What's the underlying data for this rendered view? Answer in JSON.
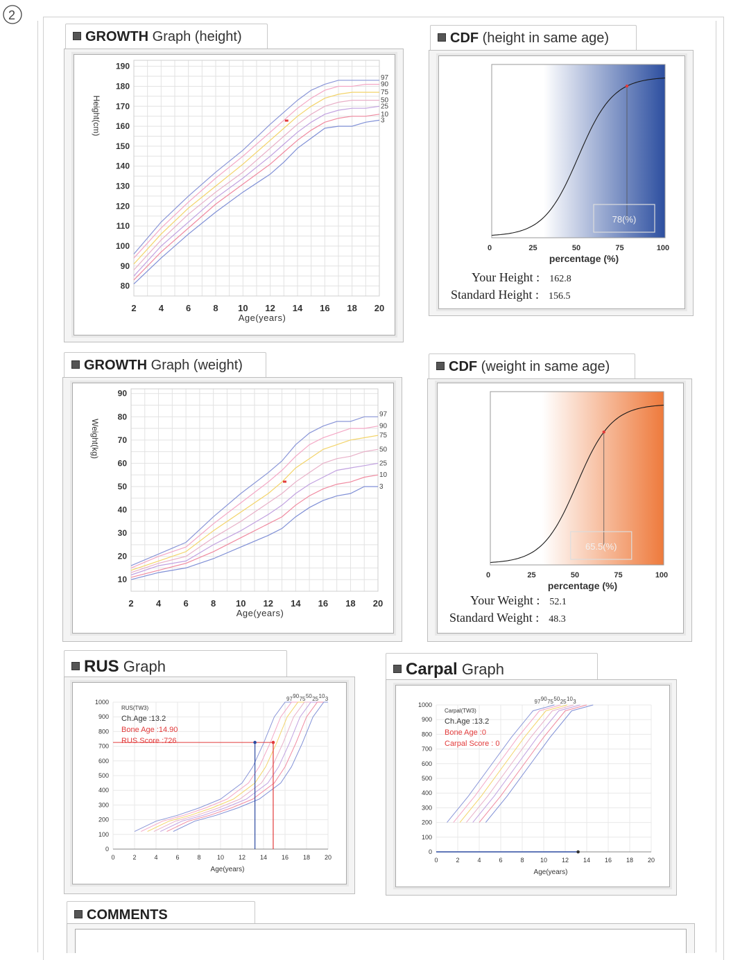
{
  "page": {
    "corner_mark": "2"
  },
  "sections": {
    "growth_height": {
      "title_bold": "GROWTH",
      "title_rest": "Graph (height)"
    },
    "cdf_height": {
      "title_bold": "CDF",
      "title_rest": "(height in same age)"
    },
    "growth_weight": {
      "title_bold": "GROWTH",
      "title_rest": "Graph (weight)"
    },
    "cdf_weight": {
      "title_bold": "CDF",
      "title_rest": "(weight in same age)"
    },
    "rus": {
      "title_bold": "RUS",
      "title_rest": "Graph"
    },
    "carpal": {
      "title_bold": "Carpal",
      "title_rest": "Graph"
    },
    "comments": {
      "title_bold": "COMMENTS"
    }
  },
  "cdf_height_stats": {
    "label1": "Your Height :",
    "value1": "162.8",
    "label2": "Standard Height :",
    "value2": "156.5"
  },
  "cdf_weight_stats": {
    "label1": "Your Weight :",
    "value1": "52.1",
    "label2": "Standard Weight :",
    "value2": "48.3"
  },
  "chart_data": [
    {
      "id": "growth_height",
      "type": "line",
      "ylabel": "Height(cm)",
      "xlabel": "Age(years)",
      "x_ticks": [
        2,
        4,
        6,
        8,
        10,
        12,
        14,
        16,
        18,
        20
      ],
      "y_ticks": [
        80,
        90,
        100,
        110,
        120,
        130,
        140,
        150,
        160,
        170,
        180,
        190
      ],
      "xlim": [
        2,
        20
      ],
      "ylim": [
        75,
        193
      ],
      "grid": true,
      "x": [
        2,
        4,
        6,
        8,
        10,
        12,
        13,
        14,
        15,
        16,
        17,
        18,
        19,
        20
      ],
      "series": [
        {
          "name": "97",
          "values": [
            96,
            112,
            125,
            137,
            148,
            161,
            167,
            173,
            178,
            181,
            183,
            183,
            183,
            183
          ]
        },
        {
          "name": "90",
          "values": [
            94,
            109,
            122,
            134,
            145,
            157,
            163,
            169,
            174,
            178,
            180,
            180,
            181,
            181
          ]
        },
        {
          "name": "75",
          "values": [
            91,
            106,
            119,
            130,
            141,
            153,
            159,
            165,
            170,
            174,
            176,
            177,
            177,
            177
          ]
        },
        {
          "name": "50",
          "values": [
            88,
            103,
            116,
            127,
            137,
            149,
            155,
            161,
            166,
            170,
            172,
            173,
            173,
            173
          ]
        },
        {
          "name": "25",
          "values": [
            85,
            100,
            112,
            124,
            134,
            145,
            151,
            157,
            162,
            166,
            168,
            169,
            169,
            170
          ]
        },
        {
          "name": "10",
          "values": [
            83,
            97,
            109,
            121,
            131,
            141,
            147,
            153,
            158,
            162,
            164,
            165,
            165,
            166
          ]
        },
        {
          "name": "3",
          "values": [
            81,
            94,
            106,
            117,
            127,
            136,
            142,
            149,
            154,
            159,
            160,
            160,
            162,
            163
          ]
        }
      ],
      "point": {
        "x": 13.2,
        "y": 162.8
      }
    },
    {
      "id": "cdf_height",
      "type": "line",
      "xlabel": "percentage (%)",
      "x_ticks": [
        0,
        25,
        50,
        75,
        100
      ],
      "xlim": [
        0,
        100
      ],
      "marker": {
        "x": 78,
        "label": "78(%)"
      },
      "gradient": [
        "#ffffff",
        "#2d4fa0"
      ]
    },
    {
      "id": "growth_weight",
      "type": "line",
      "ylabel": "Weight(kg)",
      "xlabel": "Age(years)",
      "x_ticks": [
        2,
        4,
        6,
        8,
        10,
        12,
        14,
        16,
        18,
        20
      ],
      "y_ticks": [
        10,
        20,
        30,
        40,
        50,
        60,
        70,
        80,
        90
      ],
      "xlim": [
        2,
        20
      ],
      "ylim": [
        5,
        92
      ],
      "grid": true,
      "x": [
        2,
        4,
        6,
        8,
        10,
        12,
        13,
        14,
        15,
        16,
        17,
        18,
        19,
        20
      ],
      "series": [
        {
          "name": "97",
          "values": [
            16,
            21,
            26,
            37,
            47,
            56,
            61,
            68,
            73,
            76,
            78,
            78,
            80,
            80
          ]
        },
        {
          "name": "90",
          "values": [
            15,
            20,
            24,
            34,
            43,
            52,
            57,
            63,
            68,
            71,
            73,
            75,
            75,
            76
          ]
        },
        {
          "name": "75",
          "values": [
            14,
            18,
            22,
            31,
            39,
            47,
            52,
            58,
            62,
            66,
            68,
            70,
            71,
            72
          ]
        },
        {
          "name": "50",
          "values": [
            13,
            17,
            20,
            28,
            35,
            43,
            47,
            52,
            56,
            60,
            62,
            63,
            65,
            66
          ]
        },
        {
          "name": "25",
          "values": [
            12,
            16,
            18,
            25,
            31,
            38,
            42,
            47,
            51,
            54,
            57,
            58,
            59,
            60
          ]
        },
        {
          "name": "10",
          "values": [
            11,
            14,
            17,
            22,
            28,
            34,
            37,
            42,
            46,
            49,
            51,
            52,
            54,
            55
          ]
        },
        {
          "name": "3",
          "values": [
            10,
            13,
            15,
            19,
            24,
            29,
            32,
            37,
            41,
            44,
            46,
            47,
            50,
            50
          ]
        }
      ],
      "point": {
        "x": 13.2,
        "y": 52.1
      }
    },
    {
      "id": "cdf_weight",
      "type": "line",
      "xlabel": "percentage (%)",
      "x_ticks": [
        0,
        25,
        50,
        75,
        100
      ],
      "xlim": [
        0,
        100
      ],
      "marker": {
        "x": 65.5,
        "label": "65.5(%)"
      },
      "gradient": [
        "#ffffff",
        "#ee7a3c"
      ]
    },
    {
      "id": "rus",
      "type": "line",
      "xlabel": "Age(years)",
      "x_ticks": [
        0,
        2,
        4,
        6,
        8,
        10,
        12,
        14,
        16,
        18,
        20
      ],
      "y_ticks": [
        0,
        100,
        200,
        300,
        400,
        500,
        600,
        700,
        800,
        900,
        1000
      ],
      "xlim": [
        0,
        20
      ],
      "ylim": [
        0,
        1000
      ],
      "annotations": {
        "name": "RUS(TW3)",
        "ch_age": "Ch.Age :13.2",
        "bone_age": "Bone Age :14.90",
        "score": "RUS Score :726"
      },
      "percentile_labels": [
        "97",
        "90",
        "75",
        "50",
        "25",
        "10",
        "3"
      ],
      "series_x": [
        2,
        4,
        6,
        8,
        10,
        12,
        13,
        14,
        15,
        16,
        17
      ],
      "series_base": [
        120,
        190,
        230,
        280,
        340,
        450,
        560,
        720,
        900,
        1000,
        1000
      ],
      "chrono_age": 13.2,
      "bone_age": 14.9,
      "score": 726
    },
    {
      "id": "carpal",
      "type": "line",
      "xlabel": "Age(years)",
      "x_ticks": [
        0,
        2,
        4,
        6,
        8,
        10,
        12,
        14,
        16,
        18,
        20
      ],
      "y_ticks": [
        0,
        100,
        200,
        300,
        400,
        500,
        600,
        700,
        800,
        900,
        1000
      ],
      "xlim": [
        0,
        20
      ],
      "ylim": [
        0,
        1000
      ],
      "annotations": {
        "name": "Carpal(TW3)",
        "ch_age": "Ch.Age :13.2",
        "bone_age": "Bone Age :0",
        "score": "Carpal Score : 0"
      },
      "percentile_labels": [
        "97",
        "90",
        "75",
        "50",
        "25",
        "10",
        "3"
      ],
      "series_x": [
        1,
        3,
        5,
        7,
        9,
        11
      ],
      "series_base": [
        200,
        380,
        580,
        780,
        960,
        1000
      ],
      "chrono_age": 13.2,
      "bone_age": 0,
      "score": 0
    }
  ],
  "colors": {
    "percentiles": [
      "#8a96d8",
      "#f4a7c5",
      "#f3d46a",
      "#e8b0c8",
      "#c1a1e0",
      "#f08aa0",
      "#7f8fd6"
    ],
    "red": "#e23a3a",
    "blue": "#2c4aa0"
  }
}
